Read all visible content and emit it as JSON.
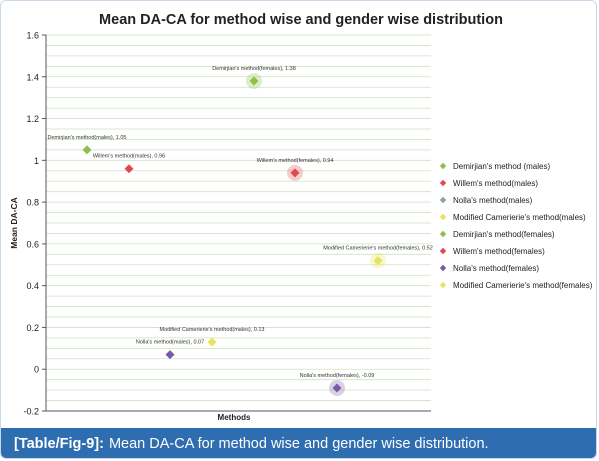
{
  "figure": {
    "caption_tag": "[Table/Fig-9]:",
    "caption_text": "Mean DA-CA for method wise and gender wise distribution."
  },
  "colors": {
    "caption_bg": "#2f6db1",
    "plot_bg": "#ffffff",
    "gridline": "#cde3c0",
    "green": "#8dbf4a",
    "red": "#e04a4f",
    "gray": "#8aa0a6",
    "yellow": "#e8e35a",
    "purple": "#7a5aa8"
  },
  "chart_data": {
    "type": "scatter",
    "title": "Mean DA-CA for method wise and gender wise distribution",
    "xlabel": "Methods",
    "ylabel": "Mean DA-CA",
    "ylim": [
      -0.2,
      1.6
    ],
    "yticks": [
      -0.2,
      0,
      0.2,
      0.4,
      0.6,
      0.8,
      1,
      1.2,
      1.4,
      1.6
    ],
    "grid": true,
    "legend_position": "right",
    "series": [
      {
        "name": "Demirjian's method (males)",
        "x": 1,
        "y": 1.05,
        "color": "#8dbf4a",
        "halo": false,
        "label": "Demirjian's method(males), 1.05"
      },
      {
        "name": "Willem's method(males)",
        "x": 2,
        "y": 0.96,
        "color": "#e04a4f",
        "halo": false,
        "label": "Willem's method(males), 0.96"
      },
      {
        "name": "Nolla's method(males)",
        "x": 3,
        "y": 0.07,
        "color": "#7a5aa8",
        "halo": false,
        "label": "Nolla's method(males), 0.07",
        "legend_color": "#8aa0a6"
      },
      {
        "name": "Modified Camerierie's method(males)",
        "x": 4,
        "y": 0.13,
        "color": "#e8e35a",
        "halo": false,
        "label": "Modified Camerierie's method(males), 0.13"
      },
      {
        "name": "Demirjian's method(females)",
        "x": 5,
        "y": 1.38,
        "color": "#8dbf4a",
        "halo": true,
        "label": "Demirjian's method(females), 1.38"
      },
      {
        "name": "Willem's method(females)",
        "x": 6,
        "y": 0.94,
        "color": "#e04a4f",
        "halo": true,
        "label": "Willem's method(females), 0.94"
      },
      {
        "name": "Nolla's method(females)",
        "x": 7,
        "y": -0.09,
        "color": "#7a5aa8",
        "halo": true,
        "label": "Nolla's method(females), -0.09"
      },
      {
        "name": "Modified Camerierie's method(females)",
        "x": 8,
        "y": 0.52,
        "color": "#e8e35a",
        "halo": true,
        "label": "Modified Camerierie's method(females), 0.52"
      }
    ]
  }
}
